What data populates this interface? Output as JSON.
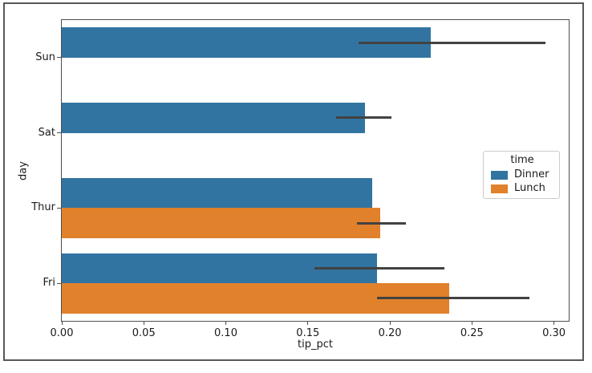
{
  "chart_data": {
    "type": "bar",
    "orientation": "horizontal",
    "title": "",
    "xlabel": "tip_pct",
    "ylabel": "day",
    "categories": [
      "Sun",
      "Sat",
      "Thur",
      "Fri"
    ],
    "xlim": [
      0,
      0.309
    ],
    "xticks": [
      0.0,
      0.05,
      0.1,
      0.15,
      0.2,
      0.25,
      0.3
    ],
    "xtick_labels": [
      "0.00",
      "0.05",
      "0.10",
      "0.15",
      "0.20",
      "0.25",
      "0.30"
    ],
    "grid": false,
    "bar_group_width_fraction": 0.8,
    "legend": {
      "title": "time",
      "position": "center-right",
      "border_color": "#cccccc"
    },
    "error_bar_color": "#424242",
    "series": [
      {
        "name": "Dinner",
        "color": "#3274a1",
        "values": [
          0.225,
          0.185,
          0.189,
          0.192
        ],
        "ci_low": [
          0.181,
          0.167,
          null,
          0.154
        ],
        "ci_high": [
          0.295,
          0.201,
          null,
          0.233
        ]
      },
      {
        "name": "Lunch",
        "color": "#e1812c",
        "values": [
          null,
          null,
          0.194,
          0.236
        ],
        "ci_low": [
          null,
          null,
          0.18,
          0.192
        ],
        "ci_high": [
          null,
          null,
          0.21,
          0.285
        ]
      }
    ]
  }
}
